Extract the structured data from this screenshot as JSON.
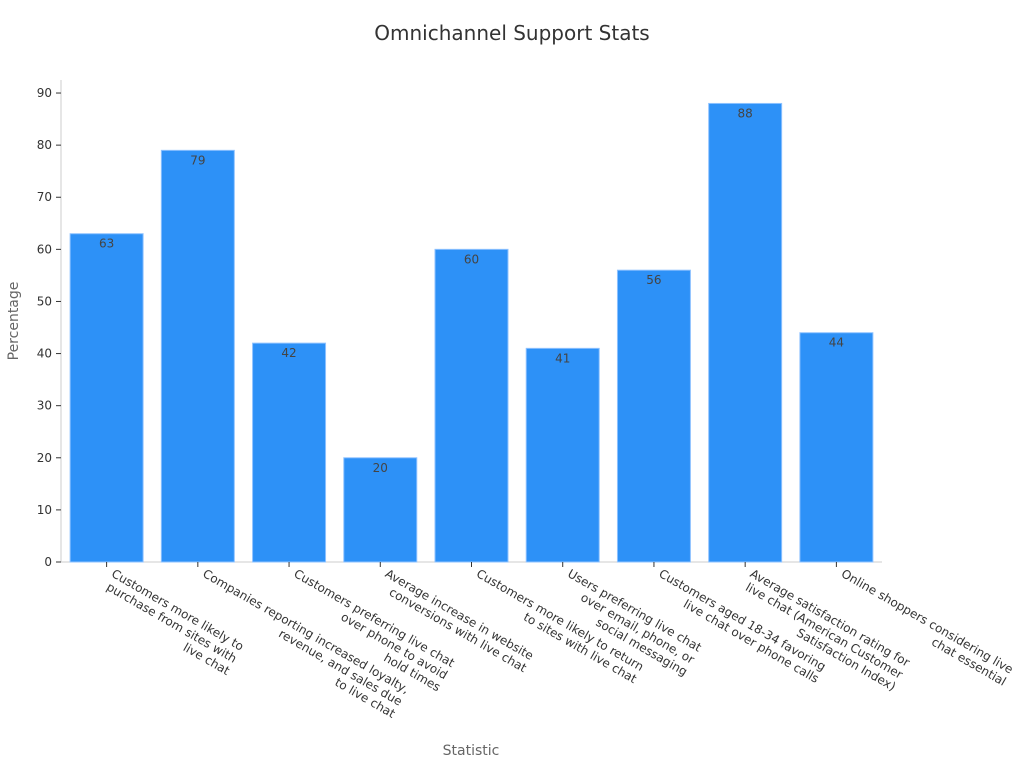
{
  "chart_data": {
    "type": "bar",
    "title": "Omnichannel Support Stats",
    "xlabel": "Statistic",
    "ylabel": "Percentage",
    "ylim": [
      0,
      92.5
    ],
    "yticks": [
      0,
      10,
      20,
      30,
      40,
      50,
      60,
      70,
      80,
      90
    ],
    "bar_color": "#2d91f7",
    "categories": [
      [
        "Customers more likely to",
        "purchase from sites with",
        "live chat"
      ],
      [
        "Companies reporting increased loyalty,",
        "revenue, and sales due",
        "to live chat"
      ],
      [
        "Customers preferring live chat",
        "over phone to avoid",
        "hold times"
      ],
      [
        "Average increase in website",
        "conversions with live chat"
      ],
      [
        "Customers more likely to return",
        "to sites with live chat"
      ],
      [
        "Users preferring live chat",
        "over email, phone, or",
        "social messaging"
      ],
      [
        "Customers aged 18-34 favoring",
        "live chat over phone calls"
      ],
      [
        "Average satisfaction rating for",
        "live chat (American Customer",
        "Satisfaction Index)"
      ],
      [
        "Online shoppers considering live",
        "chat essential"
      ]
    ],
    "values": [
      63,
      79,
      42,
      20,
      60,
      41,
      56,
      88,
      44
    ]
  }
}
